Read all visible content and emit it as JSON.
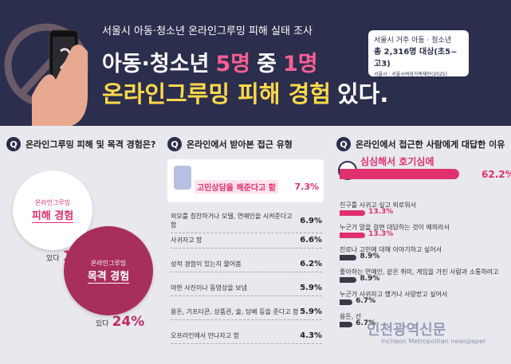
{
  "header": {
    "survey_title": "서울시 아동·청소년 온라인그루밍 피해 실태 조사",
    "headline_line1": [
      {
        "text": "아동·청소년",
        "color": "#ffffff"
      },
      {
        "text": "5명",
        "color": "#ff5f93"
      },
      {
        "text": "중",
        "color": "#ffffff"
      },
      {
        "text": "1명",
        "color": "#ff5f93"
      }
    ],
    "headline_line2": [
      {
        "text": "온라인그루밍 피해 경험",
        "color": "#ffd84a"
      },
      {
        "text": "있다.",
        "color": "#ffffff"
      }
    ],
    "note": {
      "line1": "서울시 거주 아동 · 청소년",
      "line2": "총 2,316명 대상(초5~고3)",
      "source": "서울시 · 서울시여성가족재단(2025)"
    }
  },
  "panels": [
    {
      "question": "온라인그루밍 피해 및 목격 경험은?",
      "items": [
        {
          "label_top": "온라인그루밍",
          "label_main": "피해 경험",
          "prefix": "있다",
          "value": "19%"
        },
        {
          "label_top": "온라인그루밍",
          "label_main": "목격 경험",
          "prefix": "있다",
          "value": "24%"
        }
      ]
    },
    {
      "question": "온라인에서 받아본 접근 유형",
      "items": [
        {
          "label": "고민상담을 해준다고 함",
          "value": "7.3%"
        },
        {
          "label": "외모를 칭찬하거나 모델, 연예인을 시켜준다고 함",
          "value": "6.9%"
        },
        {
          "label": "사귀자고 함",
          "value": "6.6%"
        },
        {
          "label": "성적 경험이 있는지 물어봄",
          "value": "6.2%"
        },
        {
          "label": "야한 사진이나 동영상을 보냄",
          "value": "5.9%"
        },
        {
          "label": "용돈, 기프티콘, 상품권, 술, 담배 등을 준다고 함",
          "value": "5.9%"
        },
        {
          "label": "오프라인에서 만나자고 함",
          "value": "4.3%"
        }
      ]
    },
    {
      "question": "온라인에서 접근한 사람에게 대답한 이유",
      "items": [
        {
          "label": "심심해서 호기심에",
          "value": 62.2,
          "value_label": "62.2%",
          "color": "#e0306e"
        },
        {
          "label": "친구를 사귀고 싶고 외로워서",
          "value": 13.3,
          "value_label": "13.3%",
          "color": "#e0306e"
        },
        {
          "label": "누군가 말을 걸면 대답하는 것이 예의라서",
          "value": 13.3,
          "value_label": "13.3%",
          "color": "#e0306e"
        },
        {
          "label": "진로나 고민에 대해 이야기하고 싶어서",
          "value": 8.9,
          "value_label": "8.9%",
          "color": "#3a3a44"
        },
        {
          "label": "좋아하는 연예인, 같은 취미, 게임을 가진 사람과 소통하려고",
          "value": 8.9,
          "value_label": "8.9%",
          "color": "#3a3a44"
        },
        {
          "label": "누군가 사귀자고 했거나 사랑받고 싶어서",
          "value": 6.7,
          "value_label": "6.7%",
          "color": "#3a3a44"
        },
        {
          "label": "용돈, 선",
          "value": 6.7,
          "value_label": "6.7%",
          "color": "#3a3a44"
        }
      ]
    }
  ],
  "watermark": {
    "name": "인천광역신문",
    "english": "Incheon Metropolitan newspaper"
  }
}
